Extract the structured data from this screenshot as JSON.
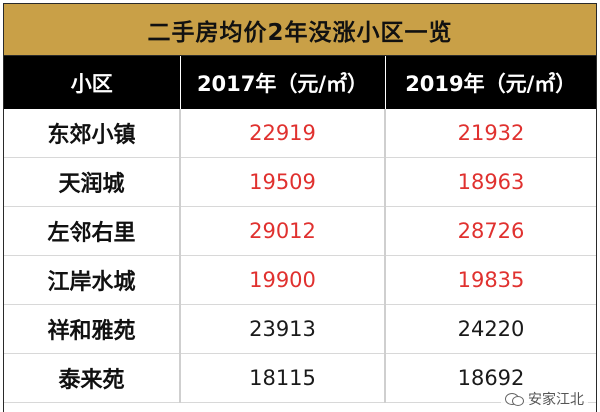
{
  "title": "二手房均价2年没涨小区一览",
  "header": {
    "col_name": "小区",
    "col_2017": "2017年（元/㎡）",
    "col_2019": "2019年（元/㎡）"
  },
  "rows": [
    {
      "name": "东郊小镇",
      "v2017": "22919",
      "v2019": "21932",
      "highlight": true
    },
    {
      "name": "天润城",
      "v2017": "19509",
      "v2019": "18963",
      "highlight": true
    },
    {
      "name": "左邻右里",
      "v2017": "29012",
      "v2019": "28726",
      "highlight": true
    },
    {
      "name": "江岸水城",
      "v2017": "19900",
      "v2019": "19835",
      "highlight": true
    },
    {
      "name": "祥和雅苑",
      "v2017": "23913",
      "v2019": "24220",
      "highlight": false
    },
    {
      "name": "泰来苑",
      "v2017": "18115",
      "v2019": "18692",
      "highlight": false
    }
  ],
  "colors": {
    "title_bg": "#c9a047",
    "header_bg": "#000000",
    "decrease_text": "#e0312f",
    "normal_text": "#1a1a1a"
  },
  "watermark": {
    "icon": "wechat-icon",
    "text": "安家江北"
  }
}
